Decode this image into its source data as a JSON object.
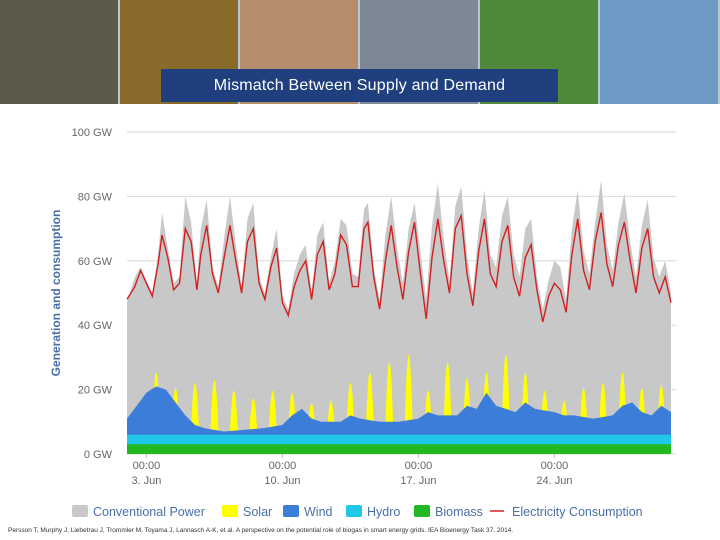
{
  "banner": {
    "photos": [
      {
        "name": "dairy-cows-photo",
        "color": "#5c5a48"
      },
      {
        "name": "vegetables-photo",
        "color": "#8a6b2c"
      },
      {
        "name": "pigs-photo",
        "color": "#b58c6c"
      },
      {
        "name": "biogas-truck-photo",
        "color": "#7c8894"
      },
      {
        "name": "digester-machinery-photo",
        "color": "#4f8a3a"
      },
      {
        "name": "biogas-plant-photo",
        "color": "#6d9ac4"
      }
    ]
  },
  "title": "Mismatch Between Supply and Demand",
  "citation": "Persson T, Murphy J, Liebetrau J, Trommler M, Toyama J, Lannasch A-K, et al. A perspective on the potential role of biogas in smart energy grids. IEA Bioenergy Task 37. 2014.",
  "chart_data": {
    "type": "area",
    "title": "Mismatch Between Supply and Demand",
    "ylabel": "Generation and consumption",
    "ylim": [
      0,
      100
    ],
    "yticks": [
      {
        "value": 0,
        "label": "0 GW"
      },
      {
        "value": 20,
        "label": "20 GW"
      },
      {
        "value": 40,
        "label": "40 GW"
      },
      {
        "value": 60,
        "label": "60 GW"
      },
      {
        "value": 80,
        "label": "80 GW"
      },
      {
        "value": 100,
        "label": "100 GW"
      }
    ],
    "xlim_days": [
      0,
      28
    ],
    "xticks": [
      {
        "day": 1,
        "time": "00:00",
        "date": "3. Jun"
      },
      {
        "day": 8,
        "time": "00:00",
        "date": "10. Jun"
      },
      {
        "day": 15,
        "time": "00:00",
        "date": "17. Jun"
      },
      {
        "day": 22,
        "time": "00:00",
        "date": "24. Jun"
      }
    ],
    "legend": [
      {
        "label": "Conventional Power",
        "color": "#c8c8c8",
        "shape": "box"
      },
      {
        "label": "Solar",
        "color": "#ffff00",
        "shape": "box"
      },
      {
        "label": "Wind",
        "color": "#3b7dd8",
        "shape": "box"
      },
      {
        "label": "Hydro",
        "color": "#1ec8e6",
        "shape": "box"
      },
      {
        "label": "Biomass",
        "color": "#22b822",
        "shape": "box"
      },
      {
        "label": "Electricity Consumption",
        "color": "#d21f1f",
        "shape": "line"
      }
    ],
    "series": [
      {
        "name": "Biomass",
        "color": "#22b822",
        "kind": "stack",
        "top": [
          [
            0,
            3
          ],
          [
            28,
            3
          ]
        ]
      },
      {
        "name": "Hydro",
        "color": "#1ec8e6",
        "kind": "stack",
        "top": [
          [
            0,
            6
          ],
          [
            28,
            6
          ]
        ]
      },
      {
        "name": "Wind",
        "color": "#3b7dd8",
        "kind": "stack",
        "top": [
          [
            0,
            11
          ],
          [
            0.5,
            15
          ],
          [
            1,
            19
          ],
          [
            1.5,
            21
          ],
          [
            2,
            20
          ],
          [
            2.5,
            16
          ],
          [
            3,
            12
          ],
          [
            3.5,
            9
          ],
          [
            4,
            8
          ],
          [
            5,
            7
          ],
          [
            6,
            7.5
          ],
          [
            7,
            8
          ],
          [
            8,
            9
          ],
          [
            8.5,
            12
          ],
          [
            9,
            14
          ],
          [
            9.5,
            11
          ],
          [
            10,
            10
          ],
          [
            11,
            10
          ],
          [
            11.5,
            12
          ],
          [
            12,
            11
          ],
          [
            13,
            10
          ],
          [
            14,
            10
          ],
          [
            15,
            11
          ],
          [
            15.5,
            13
          ],
          [
            16,
            12
          ],
          [
            17,
            12
          ],
          [
            17.5,
            15
          ],
          [
            18,
            14
          ],
          [
            18.5,
            19
          ],
          [
            19,
            15
          ],
          [
            20,
            13
          ],
          [
            20.5,
            16
          ],
          [
            21,
            14
          ],
          [
            22,
            13
          ],
          [
            22.5,
            12
          ],
          [
            23,
            12
          ],
          [
            24,
            11
          ],
          [
            25,
            12
          ],
          [
            25.5,
            15
          ],
          [
            26,
            16
          ],
          [
            26.5,
            13
          ],
          [
            27,
            12
          ],
          [
            27.5,
            15
          ],
          [
            28,
            13
          ]
        ]
      },
      {
        "name": "Solar",
        "color": "#ffff00",
        "kind": "peaks",
        "peaks": [
          [
            0.5,
            16
          ],
          [
            1.5,
            31
          ],
          [
            2.5,
            25
          ],
          [
            3.5,
            27
          ],
          [
            4.5,
            28
          ],
          [
            5.5,
            24
          ],
          [
            6.5,
            21
          ],
          [
            7.5,
            24
          ],
          [
            8.5,
            23
          ],
          [
            9.5,
            19
          ],
          [
            10.5,
            20
          ],
          [
            11.5,
            27
          ],
          [
            12.5,
            31
          ],
          [
            13.5,
            35
          ],
          [
            14.5,
            38
          ],
          [
            15.5,
            24
          ],
          [
            16.5,
            35
          ],
          [
            17.5,
            29
          ],
          [
            18.5,
            31
          ],
          [
            19.5,
            38
          ],
          [
            20.5,
            31
          ],
          [
            21.5,
            24
          ],
          [
            22.5,
            20
          ],
          [
            23.5,
            25
          ],
          [
            24.5,
            27
          ],
          [
            25.5,
            31
          ],
          [
            26.5,
            25
          ],
          [
            27.5,
            26
          ]
        ]
      },
      {
        "name": "Conventional Power",
        "color": "#c8c8c8",
        "kind": "stack",
        "top": [
          [
            0,
            47
          ],
          [
            0.4,
            55
          ],
          [
            0.7,
            58
          ],
          [
            1,
            54
          ],
          [
            1.3,
            50
          ],
          [
            1.6,
            62
          ],
          [
            1.8,
            75
          ],
          [
            2.1,
            64
          ],
          [
            2.4,
            53
          ],
          [
            2.7,
            55
          ],
          [
            3,
            80
          ],
          [
            3.3,
            72
          ],
          [
            3.6,
            53
          ],
          [
            3.8,
            70
          ],
          [
            4.1,
            79
          ],
          [
            4.4,
            58
          ],
          [
            4.7,
            52
          ],
          [
            5,
            67
          ],
          [
            5.3,
            80
          ],
          [
            5.6,
            65
          ],
          [
            5.9,
            52
          ],
          [
            6.2,
            73
          ],
          [
            6.5,
            78
          ],
          [
            6.8,
            55
          ],
          [
            7.1,
            50
          ],
          [
            7.4,
            61
          ],
          [
            7.7,
            70
          ],
          [
            8,
            49
          ],
          [
            8.3,
            45
          ],
          [
            8.6,
            56
          ],
          [
            8.9,
            62
          ],
          [
            9.2,
            65
          ],
          [
            9.5,
            50
          ],
          [
            9.8,
            68
          ],
          [
            10.1,
            72
          ],
          [
            10.4,
            53
          ],
          [
            10.7,
            60
          ],
          [
            11,
            73
          ],
          [
            11.3,
            71
          ],
          [
            11.6,
            56
          ],
          [
            11.9,
            55
          ],
          [
            12.2,
            76
          ],
          [
            12.4,
            78
          ],
          [
            12.7,
            58
          ],
          [
            13,
            48
          ],
          [
            13.3,
            68
          ],
          [
            13.6,
            80
          ],
          [
            13.9,
            64
          ],
          [
            14.2,
            53
          ],
          [
            14.5,
            70
          ],
          [
            14.8,
            78
          ],
          [
            15.1,
            63
          ],
          [
            15.4,
            48
          ],
          [
            15.7,
            71
          ],
          [
            16,
            84
          ],
          [
            16.3,
            67
          ],
          [
            16.6,
            54
          ],
          [
            16.9,
            77
          ],
          [
            17.2,
            83
          ],
          [
            17.5,
            62
          ],
          [
            17.8,
            50
          ],
          [
            18.1,
            70
          ],
          [
            18.4,
            82
          ],
          [
            18.7,
            62
          ],
          [
            19,
            58
          ],
          [
            19.3,
            74
          ],
          [
            19.6,
            80
          ],
          [
            19.9,
            62
          ],
          [
            20.2,
            55
          ],
          [
            20.5,
            70
          ],
          [
            20.8,
            73
          ],
          [
            21.1,
            55
          ],
          [
            21.4,
            45
          ],
          [
            21.7,
            54
          ],
          [
            22,
            60
          ],
          [
            22.3,
            58
          ],
          [
            22.6,
            48
          ],
          [
            22.9,
            70
          ],
          [
            23.2,
            82
          ],
          [
            23.5,
            63
          ],
          [
            23.8,
            56
          ],
          [
            24.1,
            72
          ],
          [
            24.4,
            85
          ],
          [
            24.7,
            65
          ],
          [
            25,
            57
          ],
          [
            25.3,
            72
          ],
          [
            25.6,
            81
          ],
          [
            25.9,
            66
          ],
          [
            26.2,
            55
          ],
          [
            26.5,
            71
          ],
          [
            26.8,
            79
          ],
          [
            27.1,
            61
          ],
          [
            27.4,
            55
          ],
          [
            27.7,
            60
          ],
          [
            28,
            50
          ]
        ]
      },
      {
        "name": "Electricity Consumption",
        "color": "#d21f1f",
        "kind": "line",
        "points": [
          [
            0,
            48
          ],
          [
            0.4,
            52
          ],
          [
            0.7,
            57
          ],
          [
            1,
            53
          ],
          [
            1.3,
            49
          ],
          [
            1.6,
            59
          ],
          [
            1.8,
            68
          ],
          [
            2.1,
            61
          ],
          [
            2.4,
            51
          ],
          [
            2.7,
            53
          ],
          [
            3,
            70
          ],
          [
            3.3,
            66
          ],
          [
            3.6,
            51
          ],
          [
            3.8,
            62
          ],
          [
            4.1,
            71
          ],
          [
            4.4,
            56
          ],
          [
            4.7,
            50
          ],
          [
            5,
            61
          ],
          [
            5.3,
            71
          ],
          [
            5.6,
            60
          ],
          [
            5.9,
            50
          ],
          [
            6.2,
            66
          ],
          [
            6.5,
            70
          ],
          [
            6.8,
            53
          ],
          [
            7.1,
            48
          ],
          [
            7.4,
            58
          ],
          [
            7.7,
            64
          ],
          [
            8,
            47
          ],
          [
            8.3,
            43
          ],
          [
            8.6,
            52
          ],
          [
            8.9,
            57
          ],
          [
            9.2,
            60
          ],
          [
            9.5,
            48
          ],
          [
            9.8,
            62
          ],
          [
            10.1,
            66
          ],
          [
            10.4,
            51
          ],
          [
            10.7,
            56
          ],
          [
            11,
            68
          ],
          [
            11.3,
            65
          ],
          [
            11.6,
            52
          ],
          [
            11.9,
            52
          ],
          [
            12.2,
            70
          ],
          [
            12.4,
            72
          ],
          [
            12.7,
            55
          ],
          [
            13,
            45
          ],
          [
            13.3,
            60
          ],
          [
            13.6,
            71
          ],
          [
            13.9,
            58
          ],
          [
            14.2,
            48
          ],
          [
            14.5,
            63
          ],
          [
            14.8,
            72
          ],
          [
            15.1,
            56
          ],
          [
            15.4,
            42
          ],
          [
            15.7,
            61
          ],
          [
            16,
            73
          ],
          [
            16.3,
            60
          ],
          [
            16.6,
            50
          ],
          [
            16.9,
            70
          ],
          [
            17.2,
            74
          ],
          [
            17.5,
            56
          ],
          [
            17.8,
            46
          ],
          [
            18.1,
            63
          ],
          [
            18.4,
            73
          ],
          [
            18.7,
            56
          ],
          [
            19,
            52
          ],
          [
            19.3,
            66
          ],
          [
            19.6,
            71
          ],
          [
            19.9,
            55
          ],
          [
            20.2,
            49
          ],
          [
            20.5,
            61
          ],
          [
            20.8,
            65
          ],
          [
            21.1,
            51
          ],
          [
            21.4,
            41
          ],
          [
            21.7,
            49
          ],
          [
            22,
            53
          ],
          [
            22.3,
            51
          ],
          [
            22.6,
            44
          ],
          [
            22.9,
            62
          ],
          [
            23.2,
            73
          ],
          [
            23.5,
            57
          ],
          [
            23.8,
            51
          ],
          [
            24.1,
            66
          ],
          [
            24.4,
            75
          ],
          [
            24.7,
            59
          ],
          [
            25,
            52
          ],
          [
            25.3,
            65
          ],
          [
            25.6,
            72
          ],
          [
            25.9,
            60
          ],
          [
            26.2,
            50
          ],
          [
            26.5,
            64
          ],
          [
            26.8,
            70
          ],
          [
            27.1,
            55
          ],
          [
            27.4,
            50
          ],
          [
            27.7,
            55
          ],
          [
            28,
            47
          ]
        ]
      }
    ]
  }
}
